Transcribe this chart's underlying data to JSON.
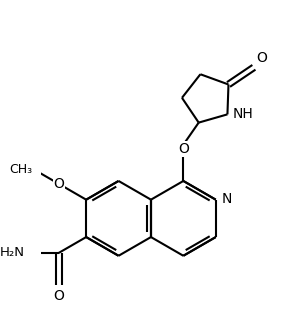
{
  "bg": "#ffffff",
  "bc": "#000000",
  "lw": 1.5,
  "fs": 9.5,
  "xlim": [
    -3.2,
    3.2
  ],
  "ylim": [
    -4.0,
    3.2
  ]
}
